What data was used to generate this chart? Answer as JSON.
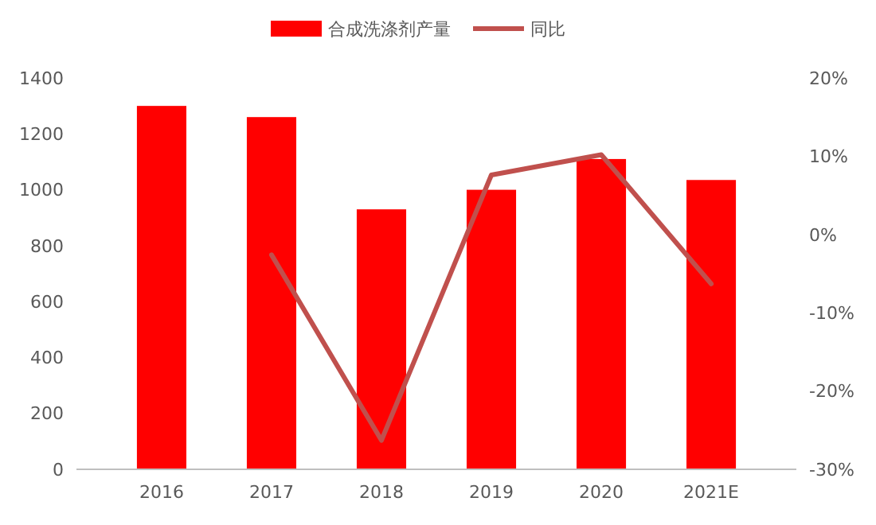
{
  "chart_data": {
    "type": "bar",
    "categories": [
      "2016",
      "2017",
      "2018",
      "2019",
      "2020",
      "2021E"
    ],
    "series": [
      {
        "name": "合成洗涤剂产量",
        "color": "#ff0000",
        "values": [
          1300,
          1260,
          930,
          1000,
          1110,
          1035
        ]
      },
      {
        "name": "同比",
        "type": "line",
        "axis": "y2",
        "color": "#c0504d",
        "values": [
          null,
          -2.6,
          -26.3,
          7.6,
          10.2,
          -6.3
        ]
      }
    ],
    "ylim": [
      0,
      1400
    ],
    "yticks": [
      0,
      200,
      400,
      600,
      800,
      1000,
      1200,
      1400
    ],
    "y2lim": [
      -30,
      20
    ],
    "y2ticks": [
      {
        "value": -30,
        "label": "-30%"
      },
      {
        "value": -20,
        "label": "-20%"
      },
      {
        "value": -10,
        "label": "-10%"
      },
      {
        "value": 0,
        "label": "0%"
      },
      {
        "value": 10,
        "label": "10%"
      },
      {
        "value": 20,
        "label": "20%"
      }
    ],
    "legend": "top",
    "grid": false
  }
}
